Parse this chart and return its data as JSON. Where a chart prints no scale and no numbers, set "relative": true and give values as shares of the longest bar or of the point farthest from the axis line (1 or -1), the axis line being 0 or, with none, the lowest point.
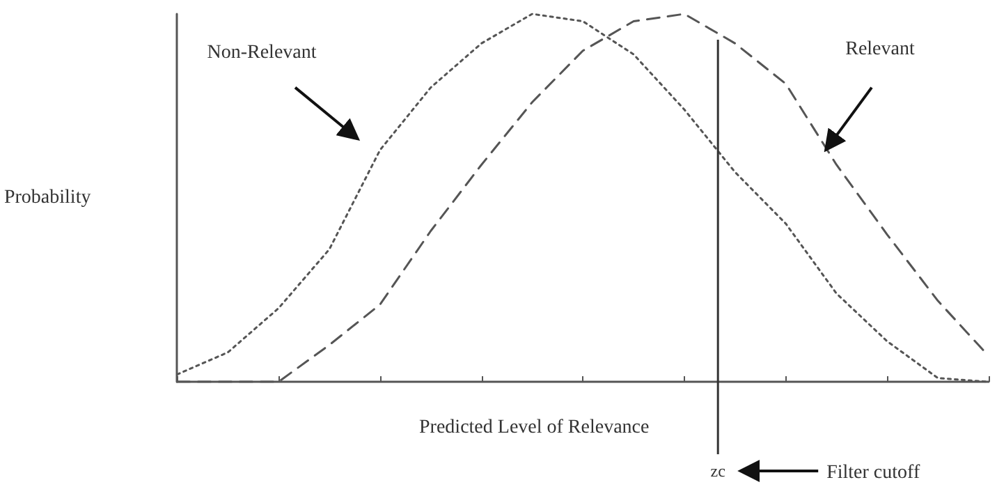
{
  "chart_data": {
    "type": "line",
    "relative": true,
    "xlabel": "Predicted Level of Relevance",
    "ylabel": "Probability",
    "categories": [
      null,
      null,
      null,
      null,
      null,
      null,
      null,
      null,
      null,
      null,
      null,
      null,
      null,
      null,
      null,
      null,
      null
    ],
    "grid": false,
    "marker": "none",
    "series": [
      {
        "color": "#555555",
        "line_style": "dotted",
        "values": [
          0.02,
          0.08,
          0.2,
          0.36,
          0.63,
          0.8,
          0.92,
          1,
          0.98,
          0.89,
          0.74,
          0.57,
          0.43,
          0.24,
          0.11,
          0.01,
          0
        ]
      },
      {
        "color": "#555555",
        "line_style": "dashed",
        "values": [
          0,
          0,
          0,
          0.1,
          0.21,
          0.41,
          0.59,
          0.76,
          0.9,
          0.98,
          1,
          0.92,
          0.81,
          0.59,
          0.4,
          0.22,
          0.07
        ]
      }
    ],
    "annotations": [
      "Non-Relevant",
      "Relevant",
      "Filter cutoff"
    ],
    "ref_lines": [
      {
        "axis": "x",
        "label": "zc",
        "color": "#333333"
      }
    ]
  }
}
